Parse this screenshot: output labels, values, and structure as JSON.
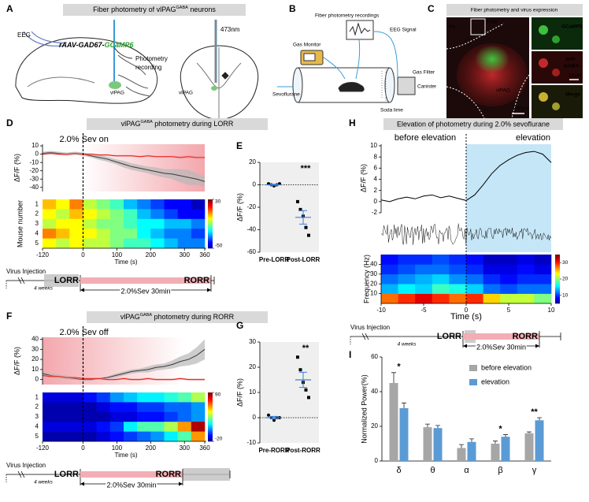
{
  "panel_a": {
    "label": "A",
    "title": [
      "Fiber photometry of vlPAG",
      "GABA",
      " neurons"
    ],
    "eeg": "EEG",
    "virus": [
      "rAAV-GAD67-",
      "GCaMP6"
    ],
    "photometry": [
      "Photometry",
      "recording"
    ],
    "region": "vlPAG",
    "laser": "473nm",
    "section_region": "vlPAG"
  },
  "panel_b": {
    "label": "B",
    "recordings": "Fiber photometry recordings",
    "eeg_signal": "EEG Signal",
    "gas_monitor": "Gas Monitor",
    "sevoflurane": "Sevoflurane",
    "gas_filter": "Gas Filter",
    "canister": "Canister",
    "soda_lime": "Soda lime"
  },
  "panel_c": {
    "label": "C",
    "title": "Fiber photometry and virus expression",
    "fiber": "Fiber",
    "aq": "Aq",
    "region": "vlPAG",
    "scale_bar": "200μm",
    "inset_scale": "10μm",
    "gcamp": "GCaMP6",
    "anti": [
      "anti-",
      "GABA"
    ],
    "merge": "Merge"
  },
  "panel_d": {
    "label": "D",
    "title": [
      "vlPAG",
      "GABA",
      " photometry during LORR"
    ],
    "event": "2.0% Sev on",
    "ylabel": "ΔF/F (%)",
    "xlim": [
      -120,
      360
    ],
    "xticks": [
      -120,
      0,
      100,
      200,
      300,
      360
    ],
    "xlabel": "Time (s)",
    "ylim": [
      -45,
      12
    ],
    "yticks": [
      10,
      0,
      -10,
      -20,
      -30,
      -40
    ],
    "x": [
      -120,
      -96,
      -72,
      -48,
      -24,
      0,
      24,
      48,
      72,
      96,
      120,
      144,
      168,
      192,
      216,
      240,
      264,
      288,
      312,
      336,
      360
    ],
    "series": [
      {
        "color": "#3a3a3a",
        "band_color": "#b8b8b8",
        "values": [
          1,
          2,
          1,
          0,
          1,
          0,
          -2,
          -4,
          -6,
          -9,
          -12,
          -15,
          -17,
          -19,
          -21,
          -23,
          -24,
          -26,
          -28,
          -30,
          -33
        ],
        "sem": [
          2,
          2,
          2,
          2,
          2,
          2,
          2,
          3,
          3,
          3,
          4,
          4,
          4,
          4,
          5,
          5,
          6,
          8,
          9,
          7,
          6
        ]
      },
      {
        "color": "#e3201b",
        "band_color": "#f4a0a0",
        "values": [
          0,
          1,
          0,
          0,
          1,
          0,
          0,
          -1,
          -1,
          -2,
          -2,
          -2,
          -3,
          -2,
          -3,
          -3,
          -3,
          -4,
          -3,
          -4,
          -4
        ],
        "sem": [
          1,
          1,
          1,
          1,
          1,
          1,
          1,
          1,
          1,
          1,
          1,
          1,
          1,
          1,
          1,
          1,
          1,
          2,
          2,
          2,
          2
        ]
      }
    ],
    "heatmap": {
      "ylabel": "Mouse number",
      "rows": [
        1,
        2,
        3,
        4,
        5
      ],
      "x_edges": [
        -120,
        -80,
        -40,
        0,
        40,
        80,
        120,
        160,
        200,
        240,
        280,
        320,
        360
      ],
      "values": [
        [
          5,
          0,
          10,
          -5,
          -10,
          -15,
          -25,
          -30,
          -35,
          -40,
          -40,
          -45
        ],
        [
          0,
          -5,
          5,
          0,
          -5,
          -10,
          -15,
          -25,
          -30,
          -35,
          -40,
          -40
        ],
        [
          -5,
          0,
          0,
          -5,
          -10,
          -10,
          -15,
          -20,
          -20,
          -25,
          -25,
          -30
        ],
        [
          10,
          5,
          0,
          0,
          -5,
          -10,
          -10,
          -20,
          -25,
          -30,
          -30,
          -35
        ],
        [
          0,
          -5,
          0,
          -5,
          -5,
          -10,
          -15,
          -15,
          -20,
          -25,
          -30,
          -30
        ]
      ],
      "clim": [
        -50,
        30
      ],
      "cticks": [
        30,
        -50
      ]
    },
    "timeline": {
      "start": "Virus Injection",
      "wait": "4 weeks",
      "lorr": "LORR",
      "rorr": "RORR",
      "treatment": "2.0%Sev 30min"
    }
  },
  "panel_e": {
    "label": "E",
    "ylabel": "ΔF/F (%)",
    "ylim": [
      -60,
      20
    ],
    "yticks": [
      20,
      0,
      -20,
      -40,
      -60
    ],
    "categories": [
      "Pre-LORR",
      "Post-LORR"
    ],
    "points": [
      [
        1,
        0,
        -1,
        0,
        1
      ],
      [
        -15,
        -22,
        -28,
        -38,
        -45
      ]
    ],
    "means": [
      0,
      -29
    ],
    "sems": [
      0.5,
      6
    ],
    "significance": "***"
  },
  "panel_f": {
    "label": "F",
    "title": [
      "vlPAG",
      "GABA",
      " photometry during RORR"
    ],
    "event": "2.0% Sev off",
    "ylabel": "ΔF/F (%)",
    "xlim": [
      -120,
      360
    ],
    "xticks": [
      -120,
      0,
      100,
      200,
      300,
      360
    ],
    "xlabel": "Time (s)",
    "ylim": [
      -5,
      42
    ],
    "yticks": [
      40,
      30,
      20,
      10,
      0
    ],
    "x": [
      -120,
      -96,
      -72,
      -48,
      -24,
      0,
      24,
      48,
      72,
      96,
      120,
      144,
      168,
      192,
      216,
      240,
      264,
      288,
      312,
      336,
      360
    ],
    "series": [
      {
        "color": "#3a3a3a",
        "band_color": "#b8b8b8",
        "values": [
          6,
          4,
          3,
          2,
          1,
          0,
          0,
          1,
          2,
          4,
          6,
          8,
          9,
          10,
          12,
          13,
          15,
          18,
          20,
          24,
          30
        ],
        "sem": [
          2,
          2,
          2,
          2,
          1,
          1,
          1,
          1,
          1,
          2,
          2,
          2,
          2,
          3,
          3,
          3,
          4,
          5,
          6,
          8,
          10
        ]
      },
      {
        "color": "#e3201b",
        "band_color": "#f4a0a0",
        "values": [
          4,
          3,
          3,
          2,
          2,
          1,
          1,
          1,
          0,
          0,
          1,
          0,
          0,
          1,
          0,
          0,
          0,
          1,
          0,
          0,
          0
        ],
        "sem": [
          1,
          1,
          1,
          1,
          1,
          1,
          1,
          1,
          1,
          1,
          1,
          1,
          1,
          1,
          1,
          1,
          1,
          1,
          1,
          1,
          1
        ]
      }
    ],
    "heatmap": {
      "rows": [
        1,
        2,
        3,
        4,
        5
      ],
      "x_edges": [
        -120,
        -80,
        -40,
        0,
        40,
        80,
        120,
        160,
        200,
        240,
        280,
        320,
        360
      ],
      "values": [
        [
          -10,
          -10,
          -10,
          -5,
          0,
          10,
          15,
          20,
          20,
          25,
          30,
          40
        ],
        [
          -15,
          -15,
          -15,
          -15,
          -10,
          -5,
          -5,
          0,
          0,
          5,
          5,
          10
        ],
        [
          -15,
          -15,
          -15,
          -15,
          -15,
          -10,
          -10,
          -5,
          -5,
          0,
          5,
          10
        ],
        [
          -10,
          -10,
          -10,
          -10,
          -5,
          0,
          20,
          30,
          30,
          40,
          60,
          85
        ],
        [
          -15,
          -15,
          -15,
          -15,
          -10,
          -5,
          0,
          5,
          10,
          20,
          30,
          60
        ]
      ],
      "clim": [
        -20,
        90
      ],
      "cticks": [
        90,
        -20
      ]
    },
    "timeline": {
      "start": "Virus Injection",
      "wait": "4 weeks",
      "lorr": "LORR",
      "rorr": "RORR",
      "treatment": "2.0%Sev 30min"
    }
  },
  "panel_g": {
    "label": "G",
    "ylabel": "ΔF/F (%)",
    "ylim": [
      -10,
      30
    ],
    "yticks": [
      30,
      20,
      10,
      0,
      -10
    ],
    "categories": [
      "Pre-RORR",
      "Post-RORR"
    ],
    "points": [
      [
        1,
        0,
        -1,
        0,
        0
      ],
      [
        24,
        19,
        14,
        11,
        8
      ]
    ],
    "means": [
      0,
      15
    ],
    "sems": [
      0.5,
      3
    ],
    "significance": "**"
  },
  "panel_h": {
    "label": "H",
    "title": "Elevation of photometry during 2.0% sevoflurane",
    "phases": [
      "before elevation",
      "elevation"
    ],
    "ylabel": "ΔF/F (%)",
    "ylim": [
      -2,
      10
    ],
    "yticks": [
      10,
      8,
      6,
      4,
      2,
      0,
      -2
    ],
    "xlim": [
      -10,
      10
    ],
    "xticks": [
      -10,
      -5,
      0,
      5,
      10
    ],
    "xlabel": "Time (s)",
    "x": [
      -10,
      -9,
      -8,
      -7,
      -6,
      -5,
      -4,
      -3,
      -2,
      -1,
      0,
      1,
      2,
      3,
      4,
      5,
      6,
      7,
      8,
      9,
      10
    ],
    "values": [
      0.3,
      0,
      0.5,
      0.8,
      0.5,
      1,
      1.2,
      0.7,
      1,
      0.6,
      0.2,
      1.2,
      3,
      5,
      6.5,
      7.5,
      8.3,
      8.8,
      9,
      8.5,
      7
    ],
    "spectrogram": {
      "ylabel": "Frequency (Hz)",
      "ylim": [
        0,
        50
      ],
      "yticks": [
        40,
        30,
        20,
        10
      ],
      "x_edges": [
        -10,
        -8,
        -6,
        -4,
        -2,
        0,
        2,
        4,
        6,
        8,
        10
      ],
      "y_edges": [
        0,
        10,
        20,
        30,
        40,
        50
      ],
      "values": [
        [
          28,
          30,
          32,
          30,
          28,
          30,
          25,
          22,
          22,
          20
        ],
        [
          14,
          16,
          15,
          18,
          17,
          15,
          12,
          11,
          12,
          12
        ],
        [
          12,
          13,
          14,
          15,
          13,
          12,
          10,
          9,
          10,
          10
        ],
        [
          10,
          11,
          12,
          12,
          11,
          10,
          8,
          8,
          9,
          8
        ],
        [
          9,
          10,
          10,
          11,
          10,
          9,
          7,
          7,
          8,
          7
        ]
      ],
      "clim": [
        5,
        35
      ],
      "cticks": [
        30,
        20,
        10
      ]
    },
    "timeline": {
      "start": "Virus Injection",
      "wait": "4 weeks",
      "lorr": "LORR",
      "rorr": "RORR",
      "treatment": "2.0%Sev 30min"
    }
  },
  "panel_i": {
    "label": "I",
    "ylabel": "Normalized Power(%)",
    "ylim": [
      0,
      60
    ],
    "yticks": [
      0,
      20,
      40,
      60
    ],
    "categories": [
      "δ",
      "θ",
      "α",
      "β",
      "γ"
    ],
    "series": [
      {
        "name": "before elevation",
        "color": "#a6a6a6",
        "values": [
          45,
          19.5,
          7.5,
          10,
          16
        ],
        "errors": [
          6,
          1.8,
          2,
          1.5,
          0.8
        ]
      },
      {
        "name": "elevation",
        "color": "#5b9bd5",
        "values": [
          30.5,
          19,
          11,
          14,
          23.5
        ],
        "errors": [
          3,
          1.5,
          1.8,
          1.2,
          1.5
        ]
      }
    ],
    "significance": [
      "*",
      null,
      null,
      "*",
      "**"
    ]
  }
}
